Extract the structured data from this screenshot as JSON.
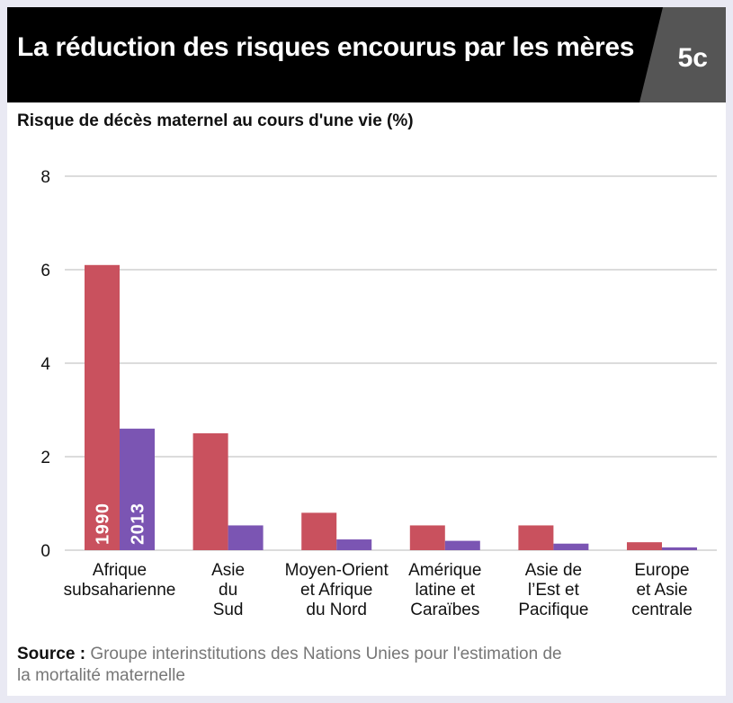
{
  "header": {
    "title": "La réduction des risques encourus par les mères",
    "badge": "5c"
  },
  "colors": {
    "series_1990": "#c9515e",
    "series_2013": "#7b55b3",
    "grid": "#c8c8c8",
    "header_bg": "#000000",
    "badge_bg": "#555555"
  },
  "chart_data": {
    "type": "bar",
    "title": "",
    "ylabel": "Risque de décès maternel au cours d'une vie (%)",
    "xlabel": "",
    "ylim": [
      0,
      8
    ],
    "yticks": [
      0,
      2,
      4,
      6,
      8
    ],
    "grid": true,
    "categories": [
      [
        "Afrique",
        "subsaharienne"
      ],
      [
        "Asie",
        "du",
        "Sud"
      ],
      [
        "Moyen-Orient",
        "et Afrique",
        "du Nord"
      ],
      [
        "Amérique",
        "latine et",
        "Caraïbes"
      ],
      [
        "Asie de",
        "l’Est et",
        "Pacifique"
      ],
      [
        "Europe",
        "et Asie",
        "centrale"
      ]
    ],
    "series": [
      {
        "name": "1990",
        "values": [
          6.1,
          2.5,
          0.8,
          0.53,
          0.53,
          0.17
        ]
      },
      {
        "name": "2013",
        "values": [
          2.6,
          0.53,
          0.23,
          0.2,
          0.14,
          0.06
        ]
      }
    ]
  },
  "source": {
    "label": "Source :",
    "text": "Groupe interinstitutions des Nations Unies pour l'estimation de la mortalité maternelle"
  }
}
